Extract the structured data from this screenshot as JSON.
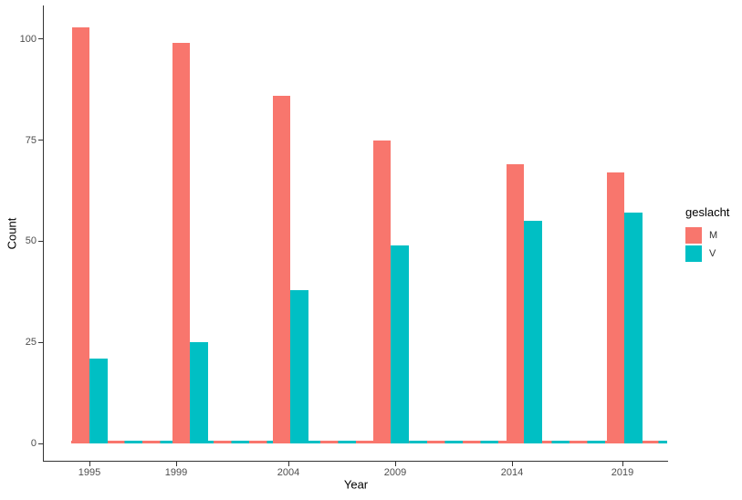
{
  "chart_data": {
    "type": "bar",
    "title": "",
    "xlabel": "Year",
    "ylabel": "Count",
    "categories": [
      "1995",
      "1999",
      "2004",
      "2009",
      "2014",
      "2019"
    ],
    "series": [
      {
        "name": "M",
        "color": "#F8766D",
        "values": [
          103,
          99,
          86,
          75,
          69,
          67
        ]
      },
      {
        "name": "V",
        "color": "#00BFC4",
        "values": [
          21,
          25,
          38,
          49,
          55,
          57
        ]
      }
    ],
    "yticks": [
      0,
      25,
      50,
      75,
      100
    ],
    "ylim": [
      0,
      105
    ],
    "grid": false,
    "legend_position": "right",
    "legend_title": "geslacht",
    "baseline_zero_bars": true,
    "baseline_zero_bars_note": "thin alternating M/V bars of near-zero height run along y=0 between the labeled year groups"
  },
  "legend": {
    "title": "geslacht",
    "entries": [
      {
        "label": "M",
        "color": "#F8766D"
      },
      {
        "label": "V",
        "color": "#00BFC4"
      }
    ]
  },
  "colors": {
    "axis_line": "#333333",
    "tick_text": "#4d4d4d",
    "title_text": "#000000",
    "background": "#FFFFFF"
  }
}
